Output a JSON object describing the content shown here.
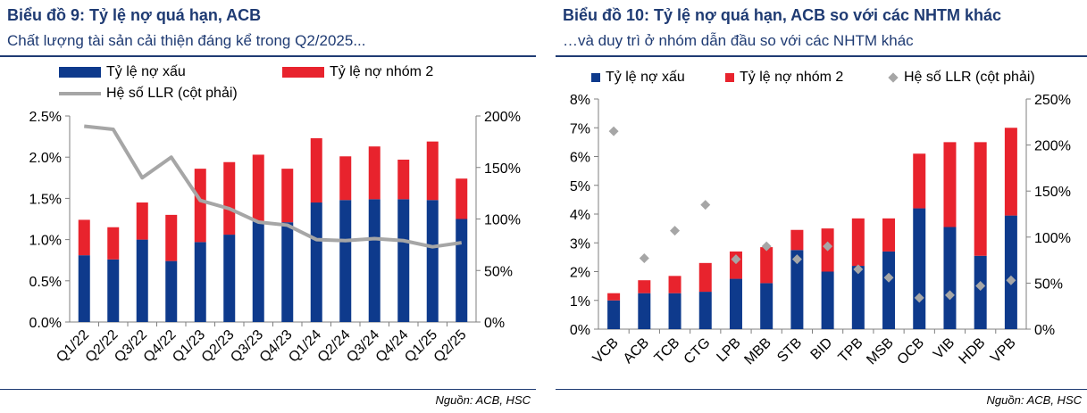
{
  "left": {
    "title": "Biểu đồ 9: Tỷ lệ nợ quá hạn, ACB",
    "subtitle": "Chất lượng tài sản cải thiện đáng kể trong Q2/2025...",
    "legend": {
      "npl": "Tỷ lệ nợ xấu",
      "group2": "Tỷ lệ nợ nhóm 2",
      "llr": "Hệ số LLR (cột phải)"
    },
    "source": "Nguồn: ACB, HSC"
  },
  "right": {
    "title": "Biểu đồ 10: Tỷ lệ nợ quá hạn, ACB so với các NHTM khác",
    "subtitle": "…và duy trì ở nhóm dẫn đầu so với các NHTM khác",
    "legend": {
      "npl": "Tỷ lệ nợ xấu",
      "group2": "Tỷ lệ nợ nhóm 2",
      "llr": "Hệ số LLR (cột phải)"
    },
    "source": "Nguồn: ACB, HSC"
  },
  "colors": {
    "npl": "#0e3a8c",
    "group2": "#e8232d",
    "llr": "#a6a6a6",
    "axis": "#7f7f7f",
    "title": "#1f3b73"
  },
  "chart_data": [
    {
      "type": "bar",
      "stacked": true,
      "title": "Biểu đồ 9: Tỷ lệ nợ quá hạn, ACB",
      "categories": [
        "Q1/22",
        "Q2/22",
        "Q3/22",
        "Q4/22",
        "Q1/23",
        "Q2/23",
        "Q3/23",
        "Q4/23",
        "Q1/24",
        "Q2/24",
        "Q3/24",
        "Q4/24",
        "Q1/25",
        "Q2/25"
      ],
      "series": [
        {
          "name": "Tỷ lệ nợ xấu",
          "kind": "bar",
          "axis": "left",
          "values": [
            0.81,
            0.76,
            1.0,
            0.74,
            0.97,
            1.06,
            1.22,
            1.21,
            1.45,
            1.48,
            1.49,
            1.49,
            1.48,
            1.25
          ]
        },
        {
          "name": "Tỷ lệ nợ nhóm 2",
          "kind": "bar",
          "axis": "left",
          "values": [
            0.43,
            0.39,
            0.45,
            0.56,
            0.89,
            0.88,
            0.81,
            0.65,
            0.78,
            0.53,
            0.64,
            0.48,
            0.71,
            0.49
          ]
        },
        {
          "name": "Hệ số LLR (cột phải)",
          "kind": "line",
          "axis": "right",
          "values": [
            190,
            187,
            140,
            160,
            118,
            110,
            97,
            94,
            80,
            79,
            81,
            79,
            73,
            77
          ]
        }
      ],
      "ylim": [
        0,
        2.5
      ],
      "yticks": [
        "0.0%",
        "0.5%",
        "1.0%",
        "1.5%",
        "2.0%",
        "2.5%"
      ],
      "y2lim": [
        0,
        200
      ],
      "y2ticks": [
        "0%",
        "50%",
        "100%",
        "150%",
        "200%"
      ],
      "legend_position": "top"
    },
    {
      "type": "bar",
      "stacked": true,
      "title": "Biểu đồ 10: Tỷ lệ nợ quá hạn, ACB so với các NHTM khác",
      "categories": [
        "VCB",
        "ACB",
        "TCB",
        "CTG",
        "LPB",
        "MBB",
        "STB",
        "BID",
        "TPB",
        "MSB",
        "OCB",
        "VIB",
        "HDB",
        "VPB"
      ],
      "series": [
        {
          "name": "Tỷ lệ nợ xấu",
          "kind": "bar",
          "axis": "left",
          "values": [
            1.0,
            1.25,
            1.25,
            1.3,
            1.75,
            1.6,
            2.75,
            2.0,
            2.2,
            2.7,
            4.2,
            3.55,
            2.55,
            3.95
          ]
        },
        {
          "name": "Tỷ lệ nợ nhóm 2",
          "kind": "bar",
          "axis": "left",
          "values": [
            0.25,
            0.45,
            0.6,
            1.0,
            0.95,
            1.25,
            0.7,
            1.5,
            1.65,
            1.15,
            1.9,
            2.95,
            3.95,
            3.05
          ]
        },
        {
          "name": "Hệ số LLR (cột phải)",
          "kind": "scatter",
          "axis": "right",
          "values": [
            215,
            77,
            107,
            135,
            76,
            90,
            76,
            90,
            65,
            56,
            34,
            37,
            47,
            53
          ]
        }
      ],
      "ylim": [
        0,
        8
      ],
      "yticks": [
        "0%",
        "1%",
        "2%",
        "3%",
        "4%",
        "5%",
        "6%",
        "7%",
        "8%"
      ],
      "y2lim": [
        0,
        250
      ],
      "y2ticks": [
        "0%",
        "50%",
        "100%",
        "150%",
        "200%",
        "250%"
      ],
      "legend_position": "top"
    }
  ]
}
